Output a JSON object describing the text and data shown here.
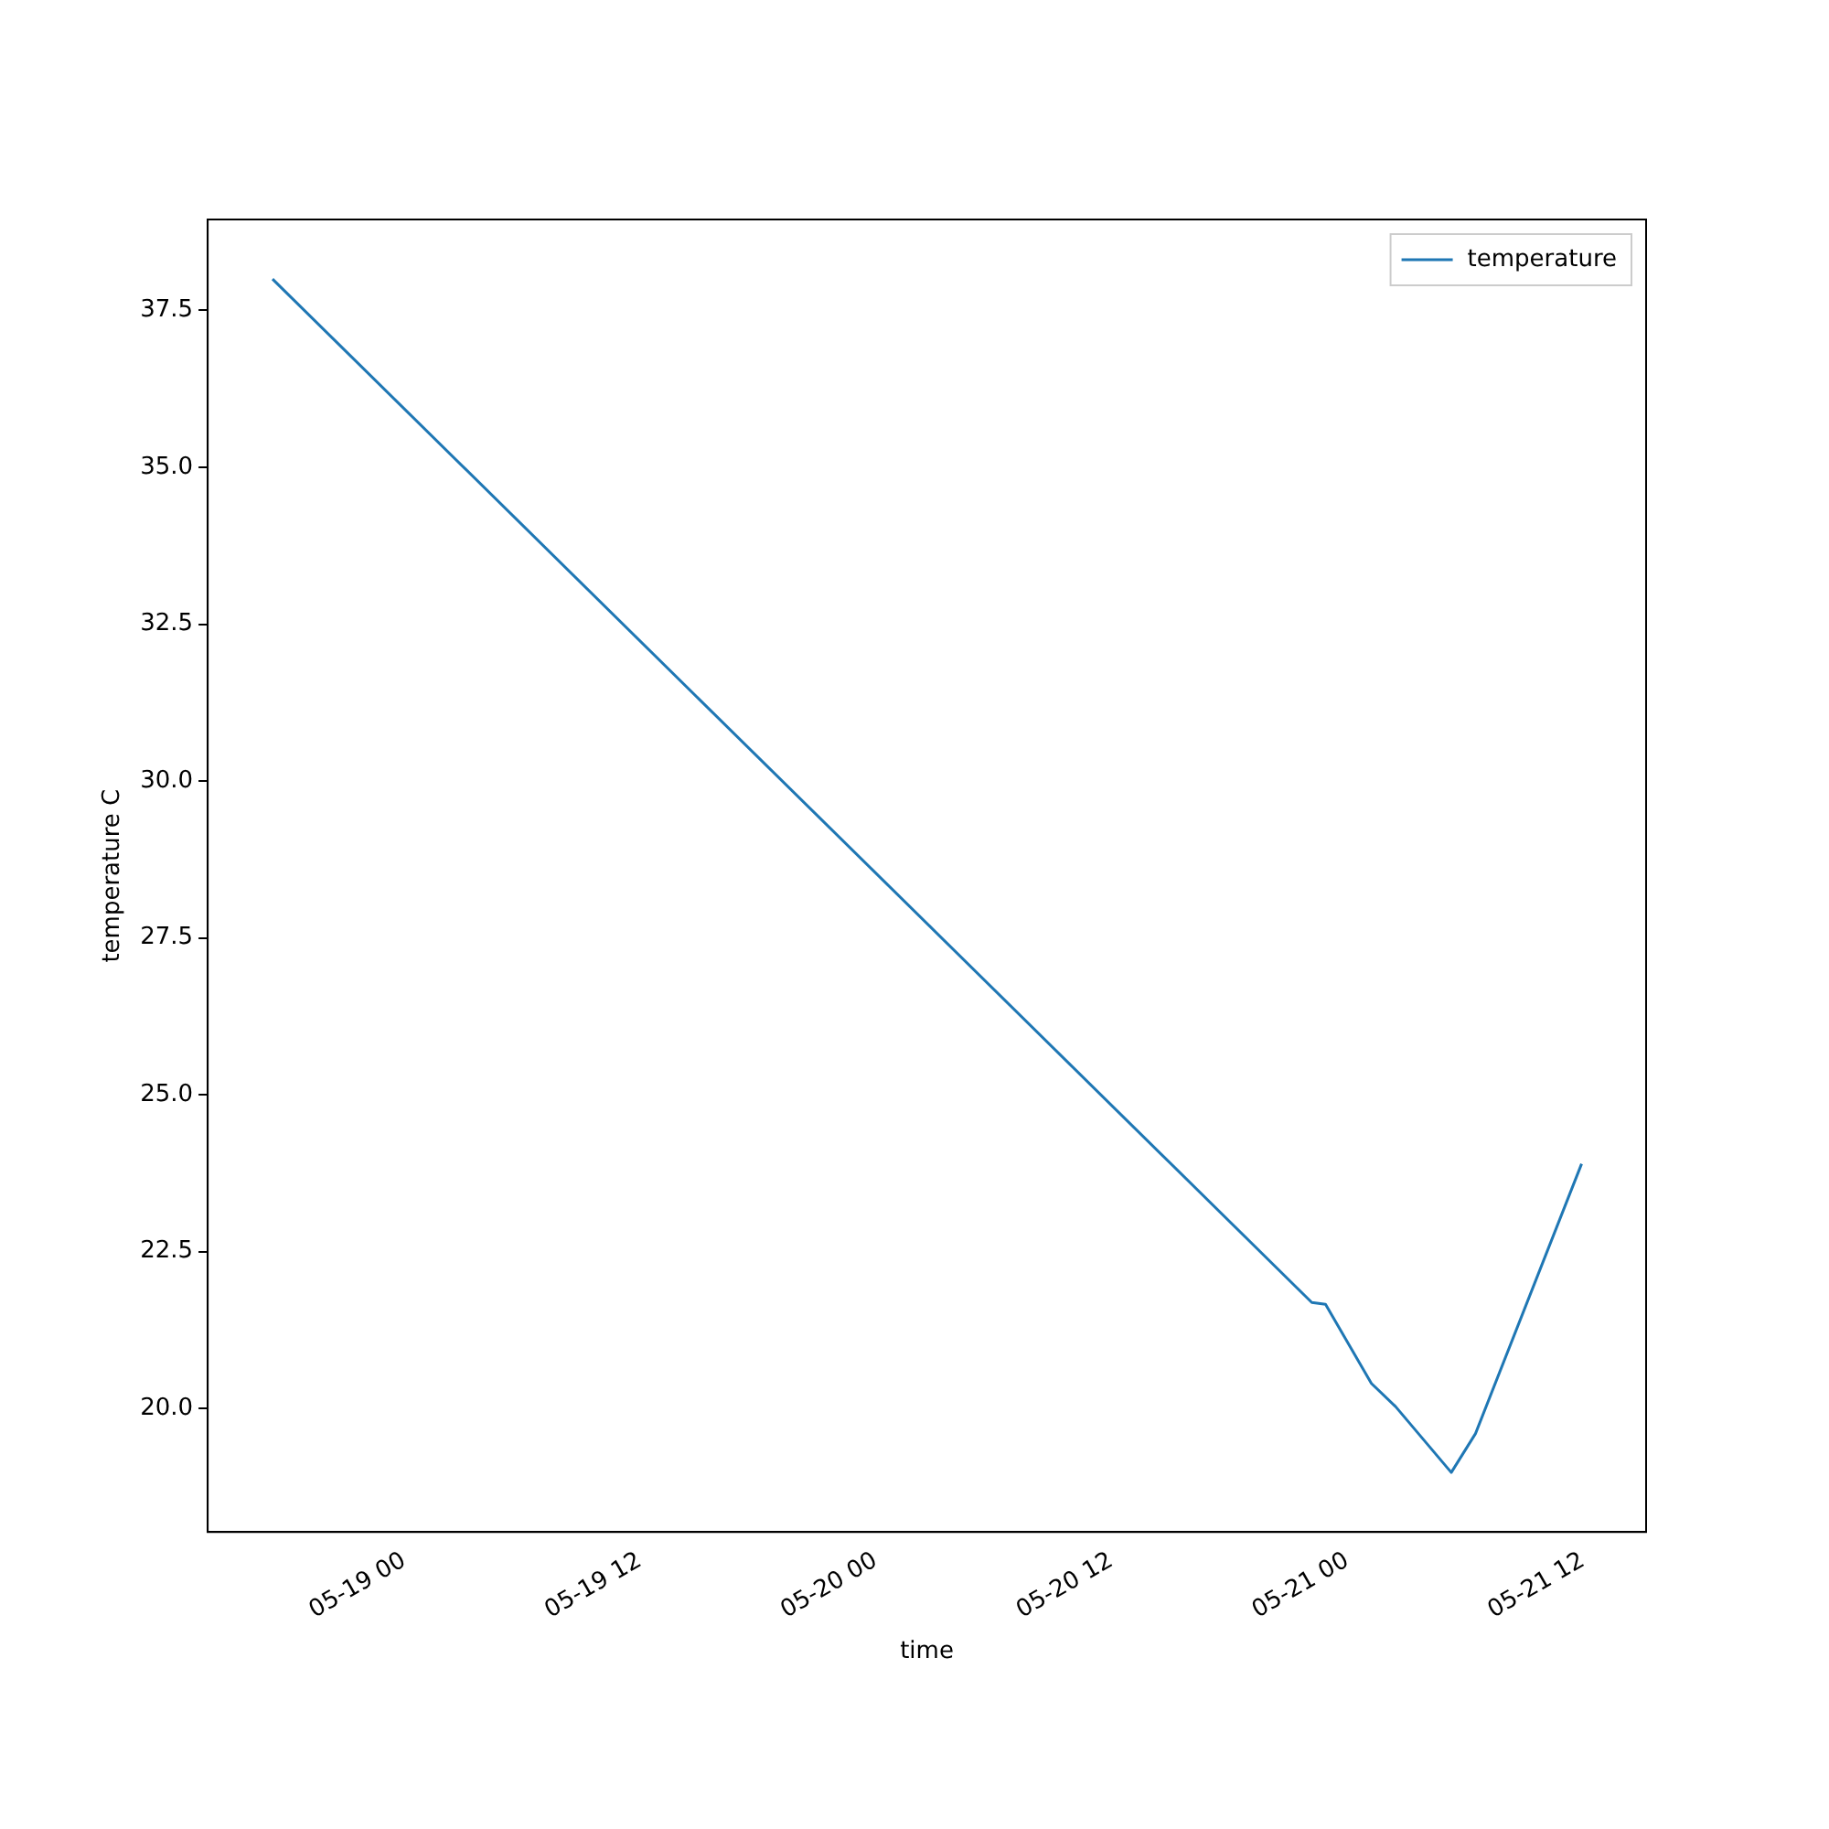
{
  "chart_data": {
    "type": "line",
    "xlabel": "time",
    "ylabel": "temperature C",
    "x": [
      "--05-18T17:18",
      "--05-20T22:12",
      "--05-20T22:54",
      "--05-21T01:14",
      "--05-21T02:28",
      "--05-21T05:18",
      "--05-21T06:32",
      "--05-21T11:56"
    ],
    "series": [
      {
        "name": "temperature",
        "color": "#1f77b4",
        "values": [
          38.0,
          21.69,
          21.66,
          20.4,
          20.03,
          18.98,
          19.6,
          23.9
        ]
      }
    ],
    "xlim": [
      "--05-18T14:00",
      "--05-21T15:13"
    ],
    "xticks": [
      {
        "value": "--05-19T00:00",
        "label": "05-19 00"
      },
      {
        "value": "--05-19T12:00",
        "label": "05-19 12"
      },
      {
        "value": "--05-20T00:00",
        "label": "05-20 00"
      },
      {
        "value": "--05-20T12:00",
        "label": "05-20 12"
      },
      {
        "value": "--05-21T00:00",
        "label": "05-21 00"
      },
      {
        "value": "--05-21T12:00",
        "label": "05-21 12"
      }
    ],
    "ylim": [
      18.03,
      38.95
    ],
    "yticks": [
      {
        "value": 20,
        "label": "20.0"
      },
      {
        "value": 22.5,
        "label": "22.5"
      },
      {
        "value": 25,
        "label": "25.0"
      },
      {
        "value": 27.5,
        "label": "27.5"
      },
      {
        "value": 30,
        "label": "30.0"
      },
      {
        "value": 32.5,
        "label": "32.5"
      },
      {
        "value": 35,
        "label": "35.0"
      },
      {
        "value": 37.5,
        "label": "37.5"
      }
    ],
    "legend": "top right",
    "grid": false,
    "marker": "none",
    "line_style": "solid"
  }
}
